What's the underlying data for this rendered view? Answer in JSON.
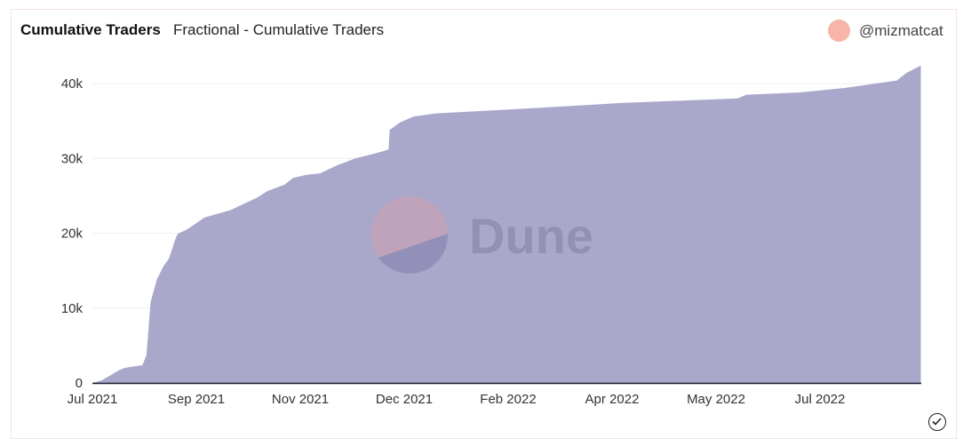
{
  "header": {
    "title": "Cumulative Traders",
    "subtitle": "Fractional - Cumulative Traders",
    "author": "@mizmatcat"
  },
  "watermark": {
    "text": "Dune"
  },
  "colors": {
    "area": "#a9a8cb",
    "avatar": "#f6b5a8",
    "logo_top": "#c4a3b8",
    "logo_bottom": "#8e8cb5",
    "logo_text": "#8e8cb2"
  },
  "chart_data": {
    "type": "area",
    "title": "Cumulative Traders",
    "xlabel": "",
    "ylabel": "",
    "ylim": [
      0,
      42400
    ],
    "y_ticks": [
      {
        "v": 0,
        "label": "0"
      },
      {
        "v": 10000,
        "label": "10k"
      },
      {
        "v": 20000,
        "label": "20k"
      },
      {
        "v": 30000,
        "label": "30k"
      },
      {
        "v": 40000,
        "label": "40k"
      }
    ],
    "x_ticks": [
      {
        "v": 0,
        "label": "Jul 2021"
      },
      {
        "v": 1,
        "label": "Sep 2021"
      },
      {
        "v": 2,
        "label": "Nov 2021"
      },
      {
        "v": 3,
        "label": "Dec 2021"
      },
      {
        "v": 4,
        "label": "Feb 2022"
      },
      {
        "v": 5,
        "label": "Apr 2022"
      },
      {
        "v": 6,
        "label": "May 2022"
      },
      {
        "v": 7,
        "label": "Jul 2022"
      }
    ],
    "x_note": "x in tick-index units",
    "xlim": [
      0,
      7.97
    ],
    "grid": true,
    "series": [
      {
        "name": "Cumulative Traders",
        "x": [
          0,
          0.09,
          0.18,
          0.25,
          0.31,
          0.48,
          0.52,
          0.54,
          0.56,
          0.62,
          0.68,
          0.74,
          0.79,
          0.82,
          0.91,
          1.08,
          1.33,
          1.59,
          1.68,
          1.85,
          1.93,
          2.06,
          2.19,
          2.36,
          2.53,
          2.7,
          2.81,
          2.85,
          2.86,
          2.96,
          3.09,
          3.3,
          4.24,
          5.09,
          6.21,
          6.29,
          6.8,
          7.23,
          7.74,
          7.83,
          7.97
        ],
        "y": [
          0,
          350,
          1070,
          1660,
          2000,
          2370,
          3680,
          7240,
          10800,
          13800,
          15500,
          16700,
          18900,
          19900,
          20500,
          22100,
          23100,
          24800,
          25600,
          26500,
          27400,
          27800,
          28000,
          29100,
          30000,
          30600,
          31000,
          31200,
          33800,
          34800,
          35600,
          36000,
          36700,
          37400,
          38000,
          38500,
          38800,
          39400,
          40400,
          41400,
          42400
        ]
      }
    ]
  }
}
